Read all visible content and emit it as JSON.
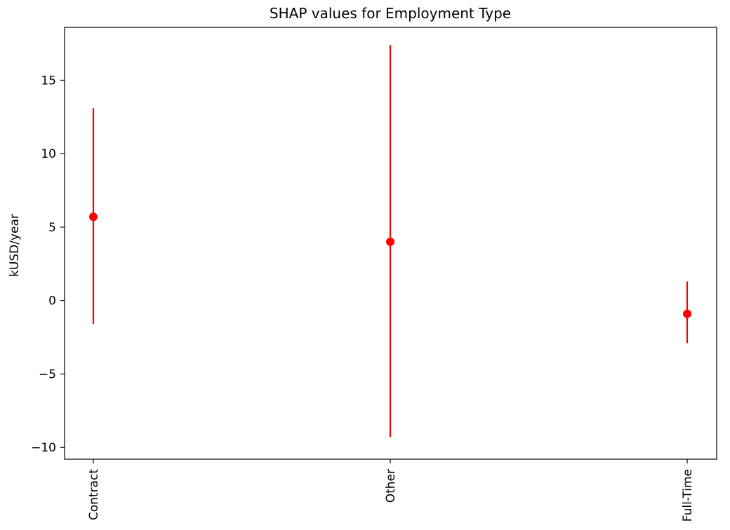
{
  "chart_data": {
    "type": "scatter",
    "title": "SHAP values for Employment Type",
    "xlabel": "",
    "ylabel": "kUSD/year",
    "categories": [
      "Contract",
      "Other",
      "Full-Time"
    ],
    "series": [
      {
        "values": [
          5.7,
          4.0,
          -0.9
        ],
        "error_low": [
          -1.6,
          -9.3,
          -2.9
        ],
        "error_high": [
          13.1,
          17.4,
          1.3
        ],
        "color": "#ff0000"
      }
    ],
    "ylim": [
      -10.8,
      18.6
    ],
    "yticks": [
      -10,
      -5,
      0,
      5,
      10,
      15
    ],
    "ytick_labels": [
      "−10",
      "−5",
      "0",
      "5",
      "10",
      "15"
    ],
    "grid": false,
    "legend": "none"
  }
}
